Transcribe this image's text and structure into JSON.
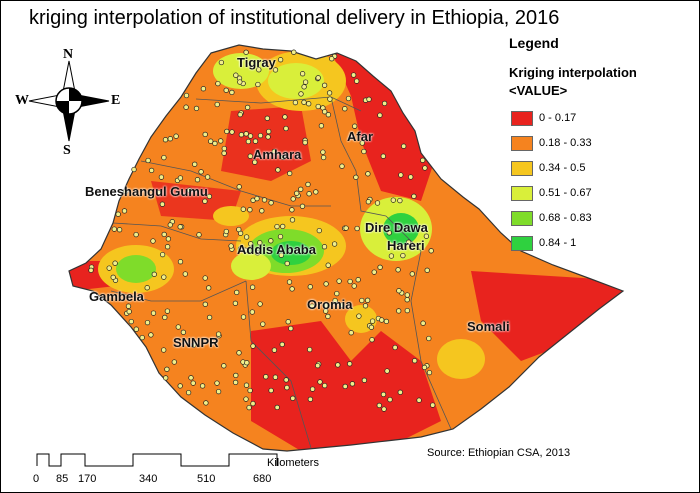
{
  "title": "kriging interpolation of institutional delivery in Ethiopia, 2016",
  "legend": {
    "heading": "Legend",
    "subheading": "Kriging interpolation",
    "field": "<VALUE>",
    "classes": [
      {
        "label": "0 - 0.17",
        "color": "#e8231e"
      },
      {
        "label": "0.18 - 0.33",
        "color": "#f5831f"
      },
      {
        "label": "0.34 - 0.5",
        "color": "#f5c61f"
      },
      {
        "label": "0.51 - 0.67",
        "color": "#d9ef3a"
      },
      {
        "label": "0.68 - 0.83",
        "color": "#7fdc2a"
      },
      {
        "label": "0.84 - 1",
        "color": "#2fd13f"
      }
    ]
  },
  "regions": {
    "tigray": "Tigray",
    "afar": "Afar",
    "amhara": "Amhara",
    "benishangul": "Beneshangul Gumu",
    "addis": "Addis Ababa",
    "dire_dawa": "Dire Dawa",
    "hareri": "Hareri",
    "gambela": "Gambela",
    "oromia": "Oromia",
    "snnpr": "SNNPR",
    "somali": "Somali"
  },
  "compass": {
    "n": "N",
    "s": "S",
    "e": "E",
    "w": "W"
  },
  "scale_bar": {
    "unit": "Kilometers",
    "ticks": [
      "0",
      "85",
      "170",
      "340",
      "510",
      "680"
    ]
  },
  "source": "Source: Ethiopian CSA, 2013",
  "colors": {
    "boundary": "#555555",
    "point_fill": "#f2ef8a",
    "point_stroke": "#222222"
  }
}
